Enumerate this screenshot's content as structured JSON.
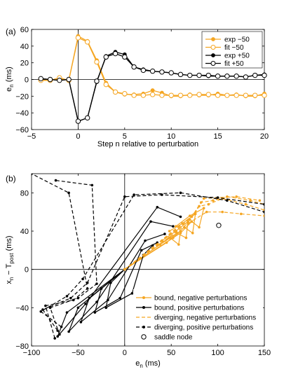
{
  "colors": {
    "orange": "#f5a623",
    "black": "#000000"
  },
  "chart_data": [
    {
      "type": "line",
      "panel_label": "(a)",
      "xlabel": "Step n relative to perturbation",
      "ylabel": "e",
      "ylabel_sub": "n",
      "ylabel_unit": " (ms)",
      "xlim": [
        -5,
        20
      ],
      "ylim": [
        -60,
        60
      ],
      "xticks": [
        -5,
        0,
        5,
        10,
        15,
        20
      ],
      "yticks": [
        -60,
        -40,
        -20,
        0,
        20,
        40,
        60
      ],
      "legend_position": "top-right",
      "x": [
        -4,
        -3,
        -2,
        -1,
        0,
        1,
        2,
        3,
        4,
        5,
        6,
        7,
        8,
        9,
        10,
        11,
        12,
        13,
        14,
        15,
        16,
        17,
        18,
        19,
        20
      ],
      "series": [
        {
          "name": "exp −50",
          "color": "#f5a623",
          "marker": "filled",
          "values": [
            -1,
            -1,
            1,
            -1,
            52,
            46,
            23,
            -4,
            -15,
            -18,
            -18,
            -17,
            -13,
            -16,
            -20,
            -20,
            -18,
            -19,
            -19,
            -17,
            -19,
            -18,
            -20,
            -20,
            -17
          ]
        },
        {
          "name": "fit −50",
          "color": "#f5a623",
          "marker": "open",
          "values": [
            -1,
            -1,
            2,
            -1,
            50,
            45,
            21,
            -6,
            -15,
            -17,
            -19,
            -19,
            -18,
            -19,
            -19,
            -19,
            -19,
            -18,
            -18,
            -19,
            -19,
            -19,
            -19,
            -19,
            -19
          ]
        },
        {
          "name": "exp +50",
          "color": "#000000",
          "marker": "filled",
          "values": [
            1,
            0,
            -1,
            0,
            -50,
            -46,
            -3,
            28,
            33,
            30,
            15,
            12,
            10,
            9,
            8,
            6,
            5,
            5,
            4,
            4,
            4,
            4,
            3,
            5,
            6
          ]
        },
        {
          "name": "fit +50",
          "color": "#000000",
          "marker": "open",
          "values": [
            1,
            0,
            -1,
            0,
            -50,
            -46,
            -2,
            27,
            31,
            27,
            15,
            11,
            10,
            9,
            8,
            6,
            5,
            5,
            5,
            4,
            4,
            4,
            3,
            5,
            5
          ]
        }
      ]
    },
    {
      "type": "line",
      "panel_label": "(b)",
      "xlabel": "e",
      "xlabel_sub": "n",
      "xlabel_unit": " (ms)",
      "ylabel": "x",
      "ylabel_sub": "n",
      "ylabel_mid": " − T",
      "ylabel_sub2": "post",
      "ylabel_unit": " (ms)",
      "xlim": [
        -100,
        150
      ],
      "ylim": [
        -80,
        100
      ],
      "xticks": [
        -100,
        -50,
        0,
        50,
        100,
        150
      ],
      "yticks": [
        -80,
        -40,
        0,
        40,
        80
      ],
      "legend_position": "bottom-right",
      "legend": [
        {
          "label": "bound, negative perturbations",
          "color": "#f5a623",
          "style": "solid-marker"
        },
        {
          "label": "bound, positive perturbations",
          "color": "#000000",
          "style": "solid-marker"
        },
        {
          "label": "diverging, negative perturbations",
          "color": "#f5a623",
          "style": "dashed"
        },
        {
          "label": "diverging, positive perturbations",
          "color": "#000000",
          "style": "dashed-marker"
        },
        {
          "label": "saddle node",
          "color": "#000000",
          "style": "open-circle"
        }
      ],
      "saddle_node": {
        "x": 101,
        "y": 46
      },
      "trajectories": [
        {
          "group": "bound-negative",
          "color": "#f5a623",
          "dashed": false,
          "points": [
            [
              0,
              0
            ],
            [
              38,
              26
            ],
            [
              49,
              33
            ],
            [
              58,
              26
            ],
            [
              60,
              40
            ],
            [
              48,
              33
            ],
            [
              35,
              25
            ]
          ]
        },
        {
          "group": "bound-negative",
          "color": "#f5a623",
          "dashed": false,
          "points": [
            [
              0,
              0
            ],
            [
              45,
              28
            ],
            [
              56,
              38
            ],
            [
              66,
              33
            ],
            [
              68,
              50
            ],
            [
              55,
              40
            ],
            [
              40,
              30
            ]
          ]
        },
        {
          "group": "bound-negative",
          "color": "#f5a623",
          "dashed": false,
          "points": [
            [
              0,
              0
            ],
            [
              52,
              33
            ],
            [
              64,
              44
            ],
            [
              73,
              38
            ],
            [
              76,
              58
            ],
            [
              62,
              48
            ],
            [
              48,
              40
            ]
          ]
        },
        {
          "group": "bound-negative",
          "color": "#f5a623",
          "dashed": false,
          "points": [
            [
              0,
              0
            ],
            [
              60,
              38
            ],
            [
              72,
              50
            ],
            [
              80,
              44
            ],
            [
              85,
              64
            ],
            [
              70,
              56
            ],
            [
              55,
              45
            ]
          ]
        },
        {
          "group": "bound-positive",
          "color": "#000000",
          "dashed": false,
          "points": [
            [
              0,
              0
            ],
            [
              -15,
              -14
            ],
            [
              -20,
              -40
            ],
            [
              8,
              -25
            ],
            [
              20,
              15
            ],
            [
              30,
              25
            ]
          ]
        },
        {
          "group": "bound-positive",
          "color": "#000000",
          "dashed": false,
          "points": [
            [
              0,
              0
            ],
            [
              -25,
              -20
            ],
            [
              -32,
              -45
            ],
            [
              -5,
              -30
            ],
            [
              18,
              20
            ],
            [
              35,
              28
            ]
          ]
        },
        {
          "group": "bound-positive",
          "color": "#000000",
          "dashed": false,
          "points": [
            [
              0,
              0
            ],
            [
              -38,
              -30
            ],
            [
              -47,
              -55
            ],
            [
              -18,
              -32
            ],
            [
              22,
              30
            ],
            [
              43,
              37
            ]
          ]
        },
        {
          "group": "bound-positive",
          "color": "#000000",
          "dashed": false,
          "points": [
            [
              0,
              0
            ],
            [
              -50,
              -40
            ],
            [
              -60,
              -65
            ],
            [
              -30,
              -34
            ],
            [
              28,
              50
            ],
            [
              52,
              45
            ]
          ]
        },
        {
          "group": "bound-positive",
          "color": "#000000",
          "dashed": false,
          "points": [
            [
              0,
              0
            ],
            [
              -62,
              -45
            ],
            [
              -72,
              -70
            ],
            [
              -42,
              -36
            ],
            [
              35,
              65
            ],
            [
              60,
              55
            ]
          ]
        },
        {
          "group": "diverging-negative",
          "color": "#f5a623",
          "dashed": true,
          "points": [
            [
              0,
              0
            ],
            [
              70,
              52
            ],
            [
              80,
              66
            ],
            [
              90,
              68
            ],
            [
              105,
              74
            ],
            [
              130,
              68
            ],
            [
              150,
              62
            ]
          ]
        },
        {
          "group": "diverging-negative",
          "color": "#f5a623",
          "dashed": true,
          "points": [
            [
              0,
              0
            ],
            [
              72,
              55
            ],
            [
              82,
              70
            ],
            [
              95,
              72
            ],
            [
              110,
              76
            ],
            [
              135,
              72
            ],
            [
              150,
              68
            ]
          ]
        },
        {
          "group": "diverging-negative",
          "color": "#f5a623",
          "dashed": true,
          "points": [
            [
              0,
              0
            ],
            [
              75,
              58
            ],
            [
              85,
              74
            ],
            [
              100,
              75
            ],
            [
              120,
              76
            ],
            [
              145,
              72
            ]
          ]
        },
        {
          "group": "diverging-negative",
          "color": "#f5a623",
          "dashed": true,
          "points": [
            [
              0,
              0
            ],
            [
              68,
              48
            ],
            [
              88,
              60
            ],
            [
              105,
              60
            ],
            [
              125,
              58
            ],
            [
              150,
              56
            ]
          ]
        },
        {
          "group": "diverging-positive",
          "color": "#000000",
          "dashed": true,
          "points": [
            [
              -75,
              -72
            ],
            [
              -85,
              -38
            ],
            [
              -55,
              -32
            ],
            [
              -40,
              -20
            ],
            [
              -60,
              80
            ],
            [
              -100,
              100
            ]
          ]
        },
        {
          "group": "diverging-positive",
          "color": "#000000",
          "dashed": true,
          "points": [
            [
              -70,
              -68
            ],
            [
              -80,
              -40
            ],
            [
              -50,
              -30
            ],
            [
              -30,
              -15
            ],
            [
              -35,
              88
            ],
            [
              -74,
              93
            ]
          ]
        },
        {
          "group": "diverging-positive",
          "color": "#000000",
          "dashed": true,
          "points": [
            [
              -72,
              -64
            ],
            [
              -88,
              -42
            ],
            [
              -58,
              -30
            ],
            [
              -40,
              -14
            ],
            [
              0,
              76
            ],
            [
              40,
              78
            ],
            [
              100,
              75
            ],
            [
              150,
              68
            ]
          ]
        },
        {
          "group": "diverging-positive",
          "color": "#000000",
          "dashed": true,
          "points": [
            [
              -68,
              -60
            ],
            [
              -90,
              -44
            ],
            [
              -62,
              -28
            ],
            [
              -45,
              -10
            ],
            [
              10,
              78
            ],
            [
              60,
              80
            ],
            [
              110,
              72
            ],
            [
              150,
              60
            ]
          ]
        }
      ]
    }
  ]
}
